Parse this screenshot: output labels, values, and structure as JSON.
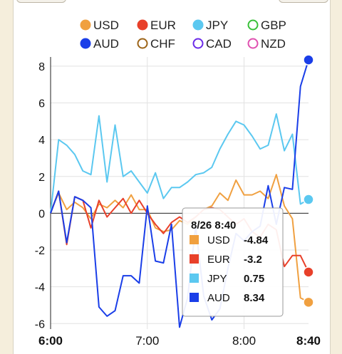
{
  "chart_data": {
    "type": "line",
    "x": [
      "6:00",
      "6:05",
      "6:10",
      "6:15",
      "6:20",
      "6:25",
      "6:30",
      "6:35",
      "6:40",
      "6:45",
      "6:50",
      "6:55",
      "7:00",
      "7:05",
      "7:10",
      "7:15",
      "7:20",
      "7:25",
      "7:30",
      "7:35",
      "7:40",
      "7:45",
      "7:50",
      "7:55",
      "8:00",
      "8:05",
      "8:10",
      "8:15",
      "8:20",
      "8:25",
      "8:30",
      "8:35",
      "8:40"
    ],
    "xticks": [
      "6:00",
      "7:00",
      "8:00",
      "8:40"
    ],
    "xticks_bold": [
      "6:00",
      "8:40"
    ],
    "yticks": [
      "8",
      "6",
      "4",
      "2",
      "0",
      "-2",
      "-4",
      "-6"
    ],
    "ylim": [
      -6.3,
      8.5
    ],
    "legend": [
      {
        "name": "USD",
        "color": "#f0a040",
        "filled": true
      },
      {
        "name": "EUR",
        "color": "#e8402a",
        "filled": true
      },
      {
        "name": "JPY",
        "color": "#5bc8f0",
        "filled": true
      },
      {
        "name": "GBP",
        "color": "#38c038",
        "filled": false
      },
      {
        "name": "AUD",
        "color": "#1a3ee8",
        "filled": true
      },
      {
        "name": "CHF",
        "color": "#9c6418",
        "filled": false
      },
      {
        "name": "CAD",
        "color": "#6a2ae8",
        "filled": false
      },
      {
        "name": "NZD",
        "color": "#e050b0",
        "filled": false
      }
    ],
    "series": [
      {
        "name": "USD",
        "color": "#f0a040",
        "values": [
          0.1,
          1.1,
          0.2,
          0.6,
          0.3,
          -0.3,
          0.5,
          0.3,
          0.7,
          0.3,
          1.0,
          0.2,
          0.2,
          -0.8,
          -1.0,
          -0.9,
          -0.4,
          -0.6,
          -0.2,
          0.2,
          0.4,
          1.1,
          0.7,
          1.8,
          1.0,
          1.0,
          1.2,
          0.8,
          2.1,
          0.4,
          -0.3,
          -4.6,
          -4.84
        ]
      },
      {
        "name": "EUR",
        "color": "#e8402a",
        "values": [
          0.0,
          1.2,
          -1.7,
          0.9,
          0.7,
          -0.8,
          0.7,
          -0.2,
          0.3,
          0.8,
          0.0,
          0.7,
          0.0,
          -0.6,
          -1.1,
          -0.5,
          -0.2,
          -0.5,
          -0.2,
          0.2,
          0.3,
          0.2,
          -0.2,
          -0.6,
          -0.3,
          -1.0,
          -1.3,
          -0.6,
          -0.9,
          -2.9,
          -2.3,
          -2.3,
          -3.2
        ]
      },
      {
        "name": "JPY",
        "color": "#5bc8f0",
        "values": [
          0.0,
          4.0,
          3.7,
          3.2,
          2.3,
          2.1,
          5.3,
          1.7,
          4.8,
          2.0,
          2.3,
          1.7,
          1.1,
          2.2,
          0.8,
          1.4,
          1.4,
          1.7,
          2.1,
          2.2,
          2.5,
          3.5,
          4.3,
          5.0,
          4.8,
          4.2,
          3.5,
          3.7,
          5.4,
          3.4,
          4.3,
          0.5,
          0.75
        ]
      },
      {
        "name": "AUD",
        "color": "#1a3ee8",
        "values": [
          0.0,
          1.2,
          -1.6,
          0.9,
          0.7,
          0.3,
          -5.1,
          -5.6,
          -5.3,
          -3.4,
          -3.4,
          -3.8,
          0.4,
          -2.6,
          -2.7,
          -0.6,
          -6.2,
          -4.6,
          -0.7,
          -4.5,
          -5.8,
          -5.2,
          -3.0,
          -1.1,
          -1.5,
          -1.0,
          -0.7,
          1.5,
          -0.6,
          1.4,
          1.3,
          6.9,
          8.34
        ]
      }
    ],
    "tooltip": {
      "title": "8/26 8:40",
      "rows": [
        {
          "name": "USD",
          "value": "-4.84",
          "color": "#f0a040"
        },
        {
          "name": "EUR",
          "value": "-3.2",
          "color": "#e8402a"
        },
        {
          "name": "JPY",
          "value": "0.75",
          "color": "#5bc8f0"
        },
        {
          "name": "AUD",
          "value": "8.34",
          "color": "#1a3ee8"
        }
      ]
    },
    "grid": true
  }
}
